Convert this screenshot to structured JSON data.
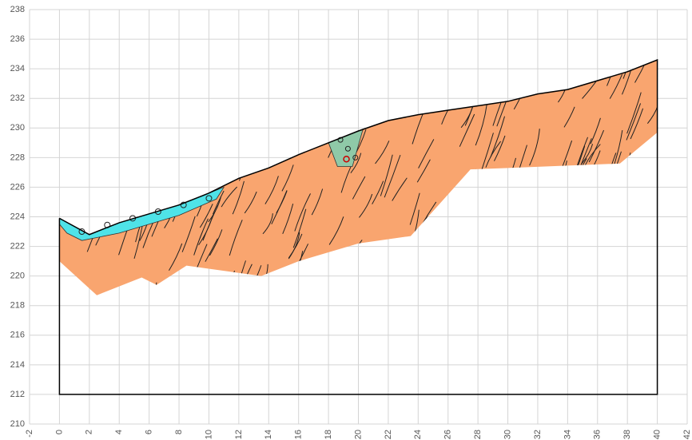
{
  "chart_data": {
    "type": "cross-section",
    "xlim": [
      -2,
      42
    ],
    "ylim": [
      210,
      238
    ],
    "xticks": [
      -2,
      0,
      2,
      4,
      6,
      8,
      10,
      12,
      14,
      16,
      18,
      20,
      22,
      24,
      26,
      28,
      30,
      32,
      34,
      36,
      38,
      40,
      42
    ],
    "yticks": [
      210,
      212,
      214,
      216,
      218,
      220,
      222,
      224,
      226,
      228,
      230,
      232,
      234,
      236,
      238
    ],
    "grid": true,
    "layers": [
      {
        "color": "#f9a56f",
        "x": [
          0,
          2,
          4,
          6,
          8,
          10,
          12,
          14,
          16,
          18,
          20,
          22,
          24,
          26,
          28,
          30,
          32,
          34,
          36,
          38,
          40,
          40,
          37.5,
          27.5,
          23.5,
          20,
          16,
          13.5,
          8.5,
          6.5,
          5.5,
          2.5,
          0
        ],
        "y": [
          223.9,
          222.8,
          223.6,
          224.2,
          224.8,
          225.6,
          226.6,
          227.3,
          228.2,
          229,
          229.8,
          230.5,
          230.9,
          231.2,
          231.5,
          231.8,
          232.3,
          232.6,
          233.2,
          233.8,
          234.6,
          229.7,
          227.6,
          227.2,
          222.7,
          222.2,
          221,
          220,
          220.7,
          219.4,
          219.9,
          218.7,
          221
        ]
      },
      {
        "color": "#4fe3e8",
        "x": [
          0,
          2,
          4,
          6,
          8,
          10,
          11,
          10.5,
          8,
          4,
          1.5,
          0.5,
          0
        ],
        "y": [
          223.9,
          222.8,
          223.6,
          224.2,
          224.8,
          225.6,
          226,
          225.2,
          224.1,
          222.9,
          222.4,
          222.9,
          223.5
        ]
      },
      {
        "color": "#8fc9a8",
        "x": [
          18,
          20,
          20.3,
          19.6,
          18.6
        ],
        "y": [
          229,
          229.8,
          229.9,
          227.4,
          227.4
        ]
      }
    ],
    "boundary": {
      "color": "#000000",
      "x": [
        0,
        2,
        4,
        6,
        8,
        10,
        12,
        14,
        16,
        18,
        20,
        22,
        24,
        26,
        28,
        30,
        32,
        34,
        36,
        38,
        40,
        40,
        0,
        0
      ],
      "y": [
        223.9,
        222.8,
        223.6,
        224.2,
        224.8,
        225.6,
        226.6,
        227.3,
        228.2,
        229,
        229.8,
        230.5,
        230.9,
        231.2,
        231.5,
        231.8,
        232.3,
        232.6,
        233.2,
        233.8,
        234.6,
        212,
        212,
        223.9
      ]
    }
  }
}
